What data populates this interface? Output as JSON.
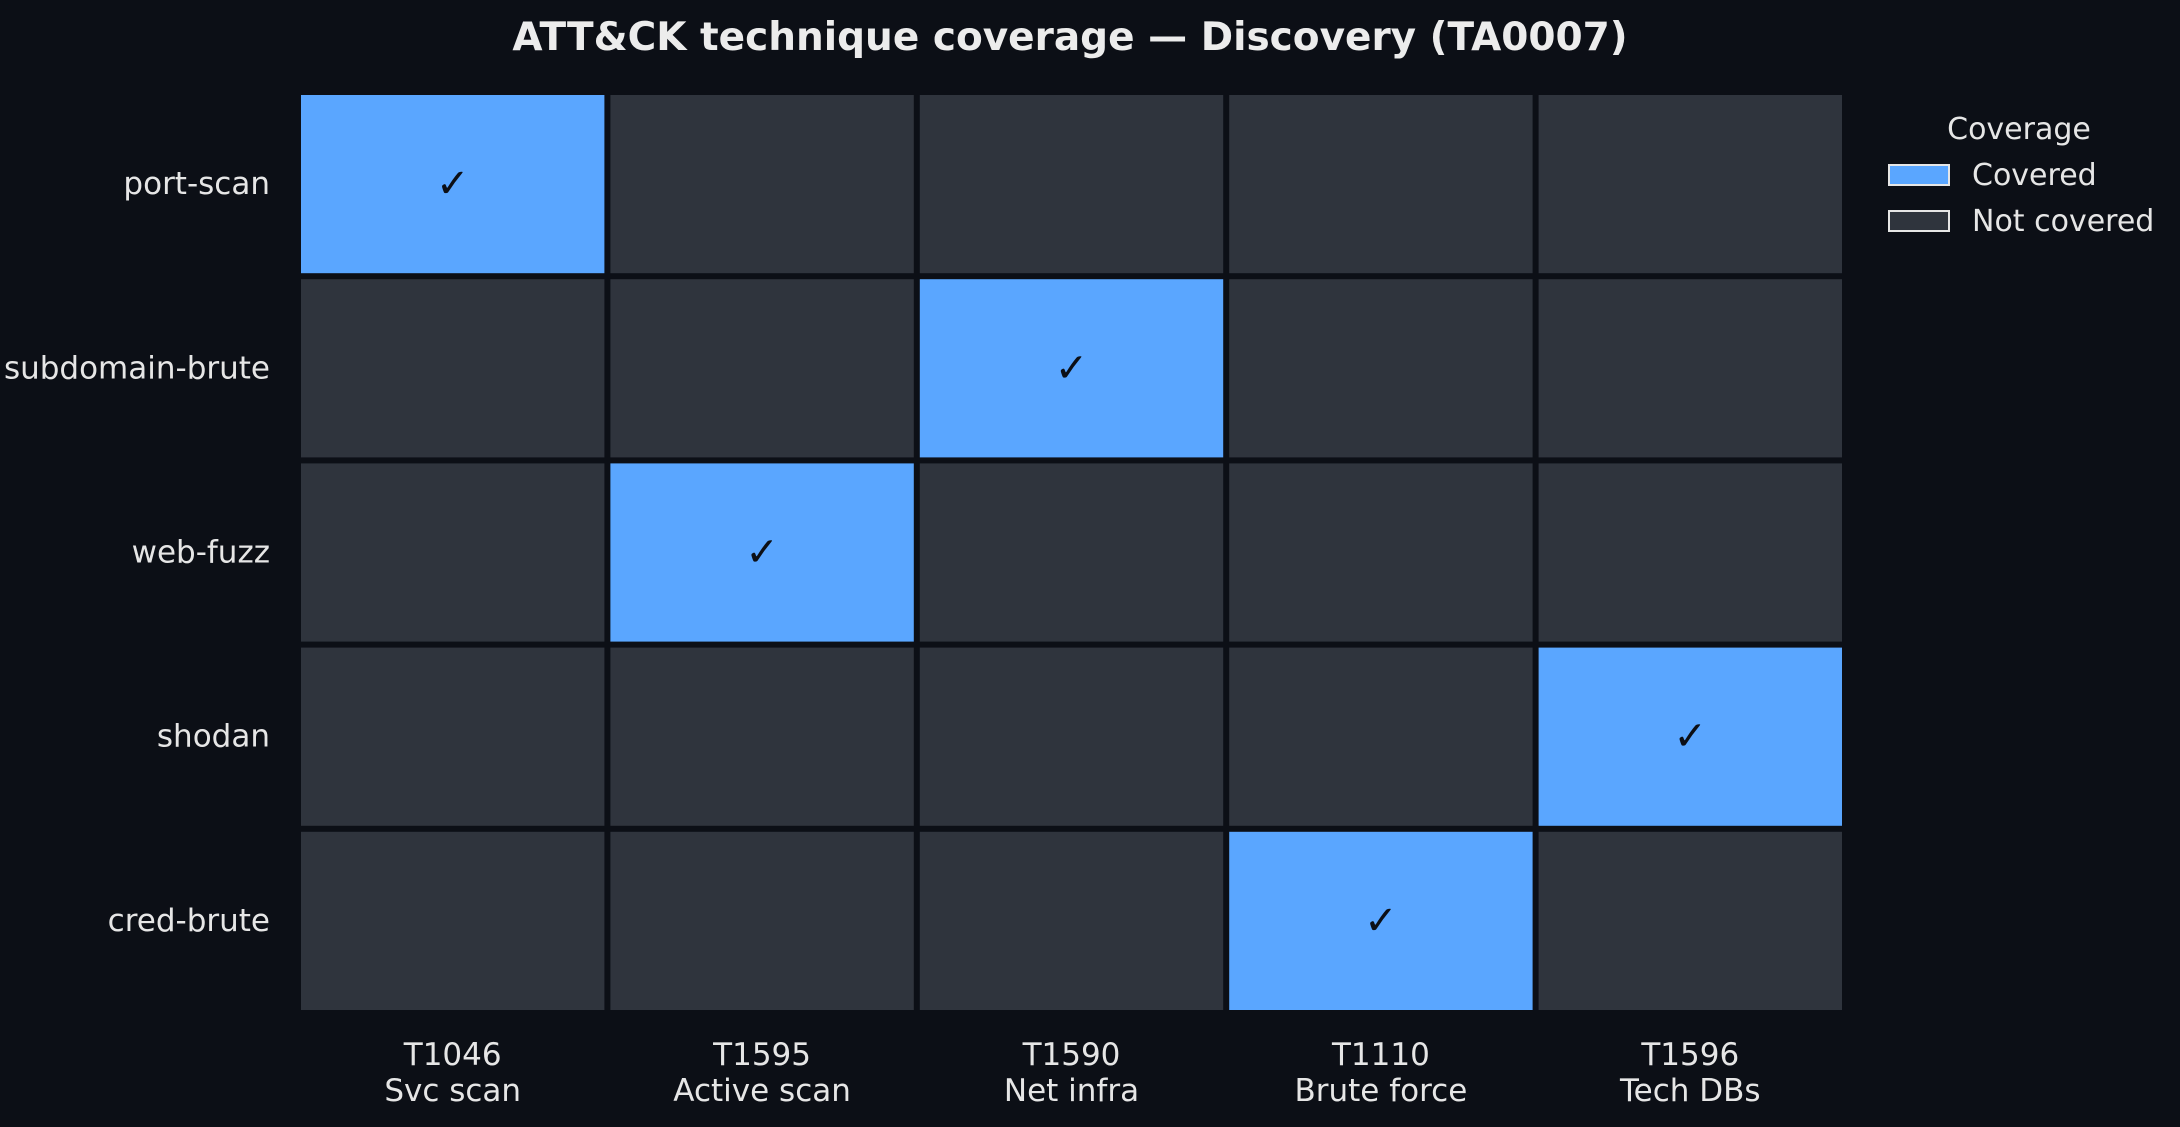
{
  "chart_data": {
    "type": "heatmap",
    "title": "ATT&CK technique coverage — Discovery (TA0007)",
    "rows": [
      "port-scan",
      "subdomain-brute",
      "web-fuzz",
      "shodan",
      "cred-brute"
    ],
    "columns": [
      {
        "id": "T1046",
        "name": "Svc scan"
      },
      {
        "id": "T1595",
        "name": "Active scan"
      },
      {
        "id": "T1590",
        "name": "Net infra"
      },
      {
        "id": "T1110",
        "name": "Brute force"
      },
      {
        "id": "T1596",
        "name": "Tech DBs"
      }
    ],
    "values": [
      [
        1,
        0,
        0,
        0,
        0
      ],
      [
        0,
        0,
        1,
        0,
        0
      ],
      [
        0,
        1,
        0,
        0,
        0
      ],
      [
        0,
        0,
        0,
        0,
        1
      ],
      [
        0,
        0,
        0,
        1,
        0
      ]
    ],
    "mark": "✓",
    "legend": {
      "title": "Coverage",
      "placement": "right",
      "entries": [
        {
          "label": "Covered",
          "value": 1,
          "color": "#5aa6ff"
        },
        {
          "label": "Not covered",
          "value": 0,
          "color": "#2f343d"
        }
      ]
    },
    "colors": {
      "covered": "#5aa6ff",
      "not_covered": "#2f343d",
      "background": "#0c0f16"
    }
  }
}
